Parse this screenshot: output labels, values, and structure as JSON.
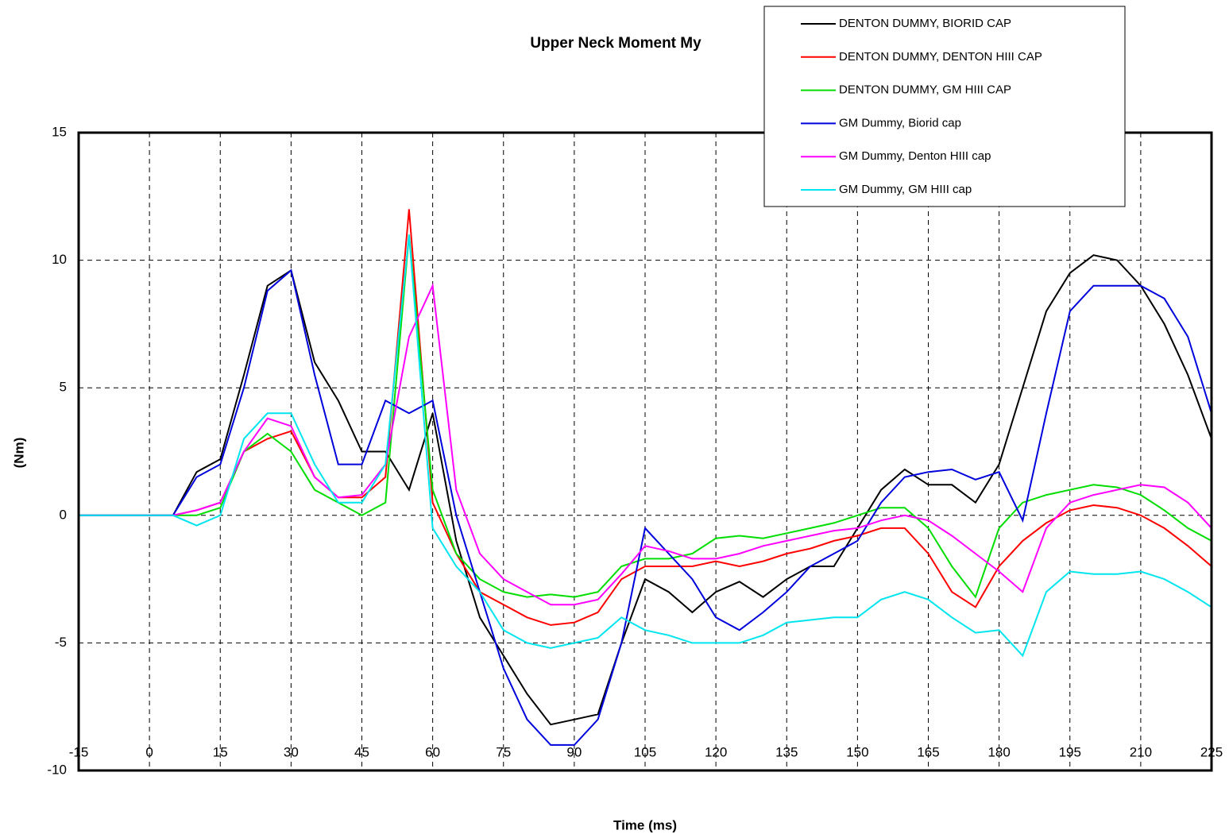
{
  "chart_data": {
    "type": "line",
    "title": "Upper Neck Moment My",
    "x_label": "Time (ms)",
    "y_label": "(Nm)",
    "x": [
      -15,
      -10,
      -5,
      0,
      5,
      10,
      15,
      20,
      25,
      30,
      35,
      40,
      45,
      50,
      55,
      60,
      65,
      70,
      75,
      80,
      85,
      90,
      95,
      100,
      105,
      110,
      115,
      120,
      125,
      130,
      135,
      140,
      145,
      150,
      155,
      160,
      165,
      170,
      175,
      180,
      185,
      190,
      195,
      200,
      205,
      210,
      215,
      220,
      225
    ],
    "series": [
      {
        "name": "DENTON DUMMY, BIORID CAP",
        "color": "#000000",
        "values": [
          0,
          0,
          0,
          0,
          0,
          1.7,
          2.2,
          5.5,
          9,
          9.6,
          6,
          4.5,
          2.5,
          2.5,
          1,
          4,
          -1,
          -4,
          -5.5,
          -7,
          -8.2,
          -8,
          -7.8,
          -5,
          -2.5,
          -3,
          -3.8,
          -3,
          -2.6,
          -3.2,
          -2.5,
          -2,
          -2,
          -0.5,
          1,
          1.8,
          1.2,
          1.2,
          0.5,
          2,
          5,
          8,
          9.5,
          10.2,
          10,
          9,
          7.5,
          5.5,
          3
        ]
      },
      {
        "name": "DENTON DUMMY, DENTON HIII CAP",
        "color": "#ff0000",
        "values": [
          0,
          0,
          0,
          0,
          0,
          0.2,
          0.5,
          2.5,
          3,
          3.3,
          1.5,
          0.7,
          0.7,
          1.5,
          12,
          0.5,
          -1.5,
          -3,
          -3.5,
          -4,
          -4.3,
          -4.2,
          -3.8,
          -2.5,
          -2,
          -2,
          -2,
          -1.8,
          -2,
          -1.8,
          -1.5,
          -1.3,
          -1,
          -0.8,
          -0.5,
          -0.5,
          -1.5,
          -3,
          -3.6,
          -2,
          -1,
          -0.3,
          0.2,
          0.4,
          0.3,
          0,
          -0.5,
          -1.2,
          -2
        ]
      },
      {
        "name": "DENTON DUMMY, GM HIII CAP",
        "color": "#00dd00",
        "values": [
          0,
          0,
          0,
          0,
          0,
          0,
          0.3,
          2.5,
          3.2,
          2.5,
          1,
          0.5,
          0,
          0.5,
          11,
          1,
          -1.5,
          -2.5,
          -3,
          -3.2,
          -3.1,
          -3.2,
          -3,
          -2,
          -1.7,
          -1.7,
          -1.5,
          -0.9,
          -0.8,
          -0.9,
          -0.7,
          -0.5,
          -0.3,
          0,
          0.3,
          0.3,
          -0.5,
          -2,
          -3.2,
          -0.5,
          0.5,
          0.8,
          1,
          1.2,
          1.1,
          0.8,
          0.2,
          -0.5,
          -1
        ]
      },
      {
        "name": "GM Dummy, Biorid cap",
        "color": "#0000dd",
        "values": [
          0,
          0,
          0,
          0,
          0,
          1.5,
          2,
          5,
          8.8,
          9.6,
          5.5,
          2,
          2,
          4.5,
          4,
          4.5,
          0,
          -3,
          -6,
          -8,
          -9,
          -9,
          -8,
          -5,
          -0.5,
          -1.5,
          -2.5,
          -4,
          -4.5,
          -3.8,
          -3,
          -2,
          -1.5,
          -1,
          0.5,
          1.5,
          1.7,
          1.8,
          1.4,
          1.7,
          -0.2,
          4,
          8,
          9,
          9,
          9,
          8.5,
          7,
          4
        ]
      },
      {
        "name": "GM Dummy, Denton HIII cap",
        "color": "#ff00ff",
        "values": [
          0,
          0,
          0,
          0,
          0,
          0.2,
          0.5,
          2.5,
          3.8,
          3.5,
          1.5,
          0.7,
          0.8,
          2,
          7,
          9,
          1,
          -1.5,
          -2.5,
          -3,
          -3.5,
          -3.5,
          -3.3,
          -2.3,
          -1.2,
          -1.4,
          -1.7,
          -1.7,
          -1.5,
          -1.2,
          -1,
          -0.8,
          -0.6,
          -0.5,
          -0.2,
          0,
          -0.2,
          -0.8,
          -1.5,
          -2.2,
          -3,
          -0.5,
          0.5,
          0.8,
          1,
          1.2,
          1.1,
          0.5,
          -0.5
        ]
      },
      {
        "name": "GM Dummy, GM HIII cap",
        "color": "#00e5ee",
        "values": [
          0,
          0,
          0,
          0,
          0,
          -0.4,
          0,
          3,
          4,
          4,
          2,
          0.5,
          0.5,
          2,
          11,
          -0.5,
          -2,
          -3,
          -4.5,
          -5,
          -5.2,
          -5,
          -4.8,
          -4,
          -4.5,
          -4.7,
          -5,
          -5,
          -5,
          -4.7,
          -4.2,
          -4.1,
          -4,
          -4,
          -3.3,
          -3,
          -3.3,
          -4,
          -4.6,
          -4.5,
          -5.5,
          -3,
          -2.2,
          -2.3,
          -2.3,
          -2.2,
          -2.5,
          -3,
          -3.6
        ]
      }
    ],
    "xlim": [
      -15,
      225
    ],
    "xticks": [
      -15,
      0,
      15,
      30,
      45,
      60,
      75,
      90,
      105,
      120,
      135,
      150,
      165,
      180,
      195,
      210,
      225
    ],
    "ylim": [
      -10,
      15
    ],
    "yticks": [
      -10,
      -5,
      0,
      5,
      10,
      15
    ],
    "grid": true
  }
}
